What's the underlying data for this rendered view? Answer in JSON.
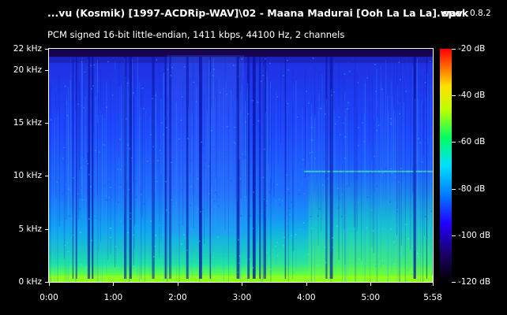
{
  "window": {
    "title": "...vu (Kosmik) [1997-ACDRip-WAV]\\02 - Maana Madurai [Ooh La La La].wav",
    "app_name": "spek",
    "app_version": "0.8.2"
  },
  "info": "PCM signed 16-bit little-endian, 1411 kbps, 44100 Hz, 2 channels",
  "chart_data": {
    "type": "heatmap",
    "y_axis": {
      "unit": "kHz",
      "range": [
        0,
        22
      ],
      "ticks": [
        {
          "value": 22,
          "label": "22 kHz"
        },
        {
          "value": 20,
          "label": "20 kHz"
        },
        {
          "value": 15,
          "label": "15 kHz"
        },
        {
          "value": 10,
          "label": "10 kHz"
        },
        {
          "value": 5,
          "label": "5 kHz"
        },
        {
          "value": 0,
          "label": "0 kHz"
        }
      ]
    },
    "x_axis": {
      "unit": "time",
      "range_seconds": [
        0,
        358
      ],
      "ticks": [
        {
          "value": 0,
          "label": "0:00"
        },
        {
          "value": 60,
          "label": "1:00"
        },
        {
          "value": 120,
          "label": "2:00"
        },
        {
          "value": 180,
          "label": "3:00"
        },
        {
          "value": 240,
          "label": "4:00"
        },
        {
          "value": 300,
          "label": "5:00"
        },
        {
          "value": 358,
          "label": "5:58"
        }
      ]
    },
    "color_scale": {
      "unit": "dB",
      "range": [
        -120,
        -20
      ],
      "ticks": [
        {
          "value": -20,
          "label": "-20 dB"
        },
        {
          "value": -40,
          "label": "-40 dB"
        },
        {
          "value": -60,
          "label": "-60 dB"
        },
        {
          "value": -80,
          "label": "-80 dB"
        },
        {
          "value": -100,
          "label": "-100 dB"
        },
        {
          "value": -120,
          "label": "-120 dB"
        }
      ],
      "colors": [
        "#000000",
        "#1a0066",
        "#2000ff",
        "#0080ff",
        "#00e0ff",
        "#00ff60",
        "#c0ff00",
        "#ffe000",
        "#ff6000",
        "#ff0000"
      ]
    }
  }
}
